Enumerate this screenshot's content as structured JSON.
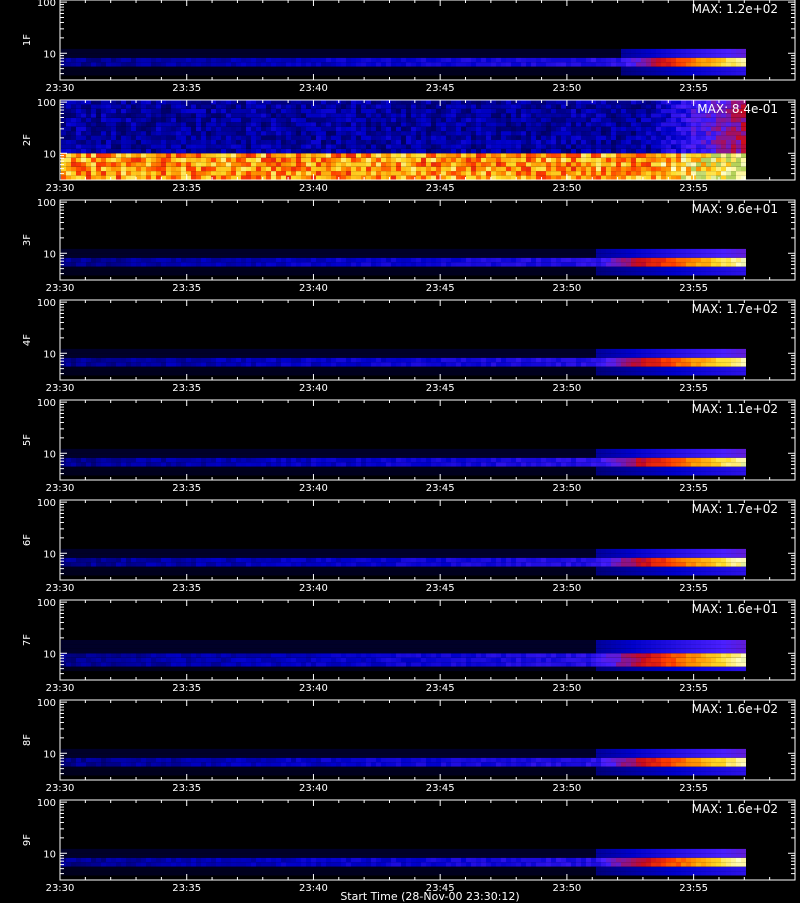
{
  "colors": {
    "background": "#000000",
    "axes": "#ffffff",
    "text": "#ffffff",
    "colormap": [
      "#000000",
      "#000050",
      "#0000cc",
      "#4b1fff",
      "#c80a1e",
      "#ff3c00",
      "#ff9600",
      "#ffdc28",
      "#ffffc8",
      "#b4d25a"
    ]
  },
  "xaxis_title": "Start Time (28-Nov-00 23:30:12)",
  "chart_data": {
    "type": "heatmap",
    "x": {
      "ticks": [
        "23:30",
        "23:35",
        "23:40",
        "23:45",
        "23:50",
        "23:55"
      ],
      "range": [
        "23:30",
        "23:59"
      ],
      "data_ends_at": "23:57"
    },
    "y": {
      "scale": "log",
      "ticks": [
        "10",
        "100"
      ],
      "range": [
        3,
        110
      ]
    },
    "panels": [
      {
        "label": "1F",
        "max_label": "MAX: 1.2e+02",
        "band_low": 5,
        "band_high": 8,
        "onset": "23:52"
      },
      {
        "label": "2F",
        "max_label": "MAX: 8.4e-01",
        "band_low": 3,
        "band_high": 10,
        "onset": "23:30"
      },
      {
        "label": "3F",
        "max_label": "MAX: 9.6e+01",
        "band_low": 5,
        "band_high": 8,
        "onset": "23:51"
      },
      {
        "label": "4F",
        "max_label": "MAX: 1.7e+02",
        "band_low": 5,
        "band_high": 8,
        "onset": "23:51"
      },
      {
        "label": "5F",
        "max_label": "MAX: 1.1e+02",
        "band_low": 5,
        "band_high": 8,
        "onset": "23:51"
      },
      {
        "label": "6F",
        "max_label": "MAX: 1.7e+02",
        "band_low": 5,
        "band_high": 8,
        "onset": "23:51"
      },
      {
        "label": "7F",
        "max_label": "MAX: 1.6e+01",
        "band_low": 6,
        "band_high": 11,
        "onset": "23:51"
      },
      {
        "label": "8F",
        "max_label": "MAX: 1.6e+02",
        "band_low": 5,
        "band_high": 8,
        "onset": "23:51"
      },
      {
        "label": "9F",
        "max_label": "MAX: 1.6e+02",
        "band_low": 5,
        "band_high": 8,
        "onset": "23:51"
      }
    ]
  }
}
